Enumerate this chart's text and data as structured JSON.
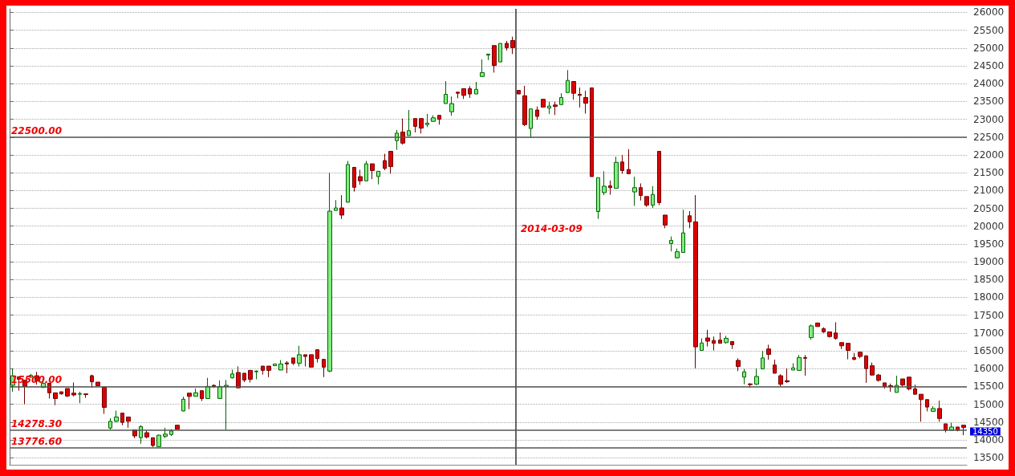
{
  "chart_data": {
    "type": "candlestick",
    "categories": [
      null,
      null,
      null,
      null,
      null,
      null,
      null,
      null,
      null,
      null,
      null,
      null,
      null,
      null,
      null,
      null,
      null,
      null,
      null,
      null,
      null,
      null,
      null,
      null,
      null,
      null,
      null,
      null,
      null,
      null,
      null,
      null,
      null,
      null,
      null,
      null,
      null,
      null,
      null,
      null,
      null,
      null,
      null,
      null,
      null,
      null,
      null,
      null,
      null,
      null,
      null,
      null,
      null,
      null,
      null,
      null,
      null,
      null,
      null,
      null,
      null,
      null,
      null,
      null,
      null,
      null,
      null,
      null,
      null,
      null,
      null,
      null,
      null,
      null,
      null,
      null,
      null,
      null,
      null,
      null,
      null,
      null,
      null,
      null,
      null,
      null,
      null,
      null,
      null,
      null,
      null,
      null,
      null,
      null,
      null,
      null,
      null,
      null,
      null,
      null,
      null,
      null,
      null,
      null,
      null,
      null,
      null,
      null,
      null,
      null,
      null,
      null,
      null,
      null,
      null,
      null,
      null,
      null,
      null,
      null,
      null,
      null,
      null,
      null,
      null,
      null,
      null,
      null,
      null,
      null,
      null,
      null,
      null,
      null,
      null,
      null,
      null,
      null,
      null,
      null,
      null,
      null,
      null,
      null,
      null,
      null,
      null,
      null,
      null,
      null,
      null,
      null,
      null,
      null,
      null,
      null,
      null
    ],
    "ohlc": [
      [
        15530,
        16000,
        15350,
        15800
      ],
      [
        15770,
        15770,
        15380,
        15700
      ],
      [
        15670,
        15680,
        15000,
        15500
      ],
      [
        15760,
        15850,
        15740,
        15810
      ],
      [
        15800,
        15910,
        15550,
        15650
      ],
      [
        15470,
        15650,
        15460,
        15590
      ],
      [
        15590,
        15590,
        15160,
        15320
      ],
      [
        15320,
        15320,
        14970,
        15160
      ],
      [
        15350,
        15350,
        15270,
        15290
      ],
      [
        15440,
        15440,
        15200,
        15230
      ],
      [
        15310,
        15610,
        15220,
        15260
      ],
      [
        15280,
        15350,
        15030,
        15300
      ],
      [
        15290,
        15290,
        15180,
        15270
      ],
      [
        15800,
        15830,
        15460,
        15630
      ],
      [
        15620,
        15620,
        15520,
        15520
      ],
      [
        15480,
        15480,
        14730,
        14910
      ],
      [
        14330,
        14610,
        14290,
        14520
      ],
      [
        14520,
        14820,
        14490,
        14640
      ],
      [
        14750,
        14750,
        14410,
        14490
      ],
      [
        14640,
        14640,
        14340,
        14520
      ],
      [
        14280,
        14280,
        14050,
        14110
      ],
      [
        14060,
        14410,
        13890,
        14370
      ],
      [
        14200,
        14260,
        14040,
        14080
      ],
      [
        14060,
        14060,
        13800,
        13840
      ],
      [
        13810,
        14150,
        13810,
        14130
      ],
      [
        14100,
        14340,
        14050,
        14160
      ],
      [
        14150,
        14300,
        14110,
        14250
      ],
      [
        14410,
        14410,
        14300,
        14300
      ],
      [
        14810,
        15210,
        14800,
        15140
      ],
      [
        15310,
        15310,
        14860,
        15220
      ],
      [
        15220,
        15440,
        15220,
        15320
      ],
      [
        15380,
        15380,
        15090,
        15160
      ],
      [
        15160,
        15740,
        15160,
        15500
      ],
      [
        15530,
        15550,
        15460,
        15500
      ],
      [
        15160,
        15670,
        15160,
        15500
      ],
      [
        15500,
        15680,
        14278,
        15530
      ],
      [
        15740,
        15970,
        15720,
        15850
      ],
      [
        15890,
        16060,
        15460,
        15460
      ],
      [
        15870,
        15870,
        15620,
        15680
      ],
      [
        15950,
        15950,
        15610,
        15700
      ],
      [
        15910,
        15950,
        15700,
        15930
      ],
      [
        16070,
        16070,
        15830,
        15950
      ],
      [
        16070,
        16070,
        15760,
        15950
      ],
      [
        16080,
        16130,
        16080,
        16130
      ],
      [
        15960,
        16240,
        15960,
        16130
      ],
      [
        16160,
        16210,
        15870,
        16130
      ],
      [
        16300,
        16300,
        16100,
        16150
      ],
      [
        16150,
        16640,
        16060,
        16390
      ],
      [
        16390,
        16390,
        16060,
        16340
      ],
      [
        16390,
        16390,
        16040,
        16040
      ],
      [
        16530,
        16530,
        16170,
        16280
      ],
      [
        16260,
        16260,
        15760,
        16040
      ],
      [
        15930,
        21500,
        15900,
        20420
      ],
      [
        20440,
        20730,
        20440,
        20510
      ],
      [
        20510,
        20870,
        20200,
        20310
      ],
      [
        20670,
        21830,
        20670,
        21730
      ],
      [
        21650,
        21650,
        20970,
        21090
      ],
      [
        21390,
        21580,
        21160,
        21270
      ],
      [
        21270,
        21830,
        21270,
        21750
      ],
      [
        21750,
        21750,
        21320,
        21560
      ],
      [
        21390,
        21540,
        21170,
        21540
      ],
      [
        21840,
        22030,
        21570,
        21620
      ],
      [
        22100,
        22100,
        21470,
        21670
      ],
      [
        22400,
        22700,
        22140,
        22610
      ],
      [
        22640,
        23020,
        22290,
        22330
      ],
      [
        22540,
        23260,
        22540,
        22680
      ],
      [
        23020,
        23020,
        22630,
        22800
      ],
      [
        23020,
        23020,
        22600,
        22750
      ],
      [
        22850,
        23150,
        22780,
        22890
      ],
      [
        22940,
        23110,
        22940,
        23040
      ],
      [
        23110,
        23110,
        22850,
        23000
      ],
      [
        23440,
        24070,
        23440,
        23700
      ],
      [
        23210,
        23640,
        23100,
        23440
      ],
      [
        23760,
        23760,
        23590,
        23730
      ],
      [
        23860,
        23860,
        23570,
        23670
      ],
      [
        23860,
        23930,
        23600,
        23710
      ],
      [
        23710,
        24050,
        23710,
        23840
      ],
      [
        24200,
        24680,
        24200,
        24310
      ],
      [
        24800,
        24830,
        24660,
        24830
      ],
      [
        25070,
        25070,
        24310,
        24510
      ],
      [
        24610,
        25130,
        24610,
        25130
      ],
      [
        25130,
        25200,
        24930,
        25010
      ],
      [
        25210,
        25320,
        24830,
        25010
      ],
      [
        23810,
        23810,
        23710,
        23710
      ],
      [
        23660,
        23940,
        22810,
        22850
      ],
      [
        22740,
        23290,
        22480,
        23290
      ],
      [
        23260,
        23360,
        22990,
        23080
      ],
      [
        23560,
        23560,
        23340,
        23340
      ],
      [
        23310,
        23490,
        23150,
        23370
      ],
      [
        23400,
        23490,
        23120,
        23360
      ],
      [
        23410,
        23730,
        23410,
        23610
      ],
      [
        23750,
        24380,
        23750,
        24090
      ],
      [
        24060,
        24060,
        23550,
        23730
      ],
      [
        23700,
        23890,
        23330,
        23670
      ],
      [
        23610,
        23800,
        23160,
        23450
      ],
      [
        23880,
        23880,
        21390,
        21390
      ],
      [
        20410,
        21360,
        20200,
        21360
      ],
      [
        20940,
        21540,
        20870,
        21120
      ],
      [
        21130,
        21280,
        20880,
        21080
      ],
      [
        21060,
        21950,
        21060,
        21790
      ],
      [
        21800,
        21990,
        21470,
        21560
      ],
      [
        21590,
        22160,
        21470,
        21470
      ],
      [
        20960,
        21390,
        20570,
        21080
      ],
      [
        21080,
        21200,
        20720,
        20860
      ],
      [
        20830,
        20830,
        20540,
        20590
      ],
      [
        20590,
        21120,
        20510,
        20890
      ],
      [
        22100,
        22100,
        20590,
        20660
      ],
      [
        20310,
        20310,
        19940,
        20030
      ],
      [
        19510,
        19710,
        19290,
        19600
      ],
      [
        19110,
        19370,
        19100,
        19280
      ],
      [
        19260,
        20460,
        19260,
        19810
      ],
      [
        20290,
        20420,
        19940,
        20120
      ],
      [
        20120,
        20870,
        16010,
        16610
      ],
      [
        16510,
        16850,
        16510,
        16720
      ],
      [
        16860,
        17090,
        16620,
        16770
      ],
      [
        16790,
        16900,
        16510,
        16710
      ],
      [
        16800,
        17010,
        16710,
        16710
      ],
      [
        16730,
        16920,
        16700,
        16850
      ],
      [
        16760,
        16760,
        16550,
        16670
      ],
      [
        16230,
        16290,
        15930,
        16060
      ],
      [
        15760,
        15990,
        15560,
        15910
      ],
      [
        15570,
        15590,
        15460,
        15550
      ],
      [
        15560,
        16010,
        15540,
        15780
      ],
      [
        15990,
        16500,
        15990,
        16300
      ],
      [
        16550,
        16670,
        16250,
        16400
      ],
      [
        16100,
        16250,
        15870,
        15870
      ],
      [
        15800,
        15840,
        15500,
        15560
      ],
      [
        15660,
        16010,
        15600,
        15630
      ],
      [
        15960,
        16150,
        15960,
        16020
      ],
      [
        15950,
        16380,
        15950,
        16310
      ],
      [
        16310,
        16380,
        15800,
        16290
      ],
      [
        16870,
        17240,
        16810,
        17200
      ],
      [
        17280,
        17280,
        17180,
        17180
      ],
      [
        17120,
        17160,
        17000,
        17030
      ],
      [
        17030,
        17030,
        16870,
        16900
      ],
      [
        17000,
        17300,
        16810,
        16850
      ],
      [
        16730,
        16730,
        16550,
        16640
      ],
      [
        16710,
        16710,
        16260,
        16510
      ],
      [
        16310,
        16440,
        16230,
        16260
      ],
      [
        16460,
        16460,
        16290,
        16340
      ],
      [
        16360,
        16360,
        15600,
        16000
      ],
      [
        16080,
        16170,
        15800,
        15820
      ],
      [
        15820,
        15850,
        15630,
        15670
      ],
      [
        15600,
        15600,
        15440,
        15500
      ],
      [
        15520,
        15580,
        15350,
        15490
      ],
      [
        15330,
        15800,
        15330,
        15530
      ],
      [
        15710,
        15710,
        15500,
        15540
      ],
      [
        15760,
        15760,
        15390,
        15430
      ],
      [
        15430,
        15550,
        15280,
        15280
      ],
      [
        15280,
        15280,
        14510,
        15130
      ],
      [
        15130,
        15130,
        14800,
        14920
      ],
      [
        14800,
        14940,
        14790,
        14880
      ],
      [
        14880,
        15100,
        14510,
        14600
      ],
      [
        14450,
        14450,
        14210,
        14270
      ],
      [
        14270,
        14480,
        14270,
        14360
      ],
      [
        14360,
        14360,
        14240,
        14270
      ],
      [
        14410,
        14410,
        14130,
        14350
      ]
    ],
    "ylim": [
      13300,
      26100
    ],
    "yticks": [
      13500,
      14000,
      14500,
      15000,
      15500,
      16000,
      16500,
      17000,
      17500,
      18000,
      18500,
      19000,
      19500,
      20000,
      20500,
      21000,
      21500,
      22000,
      22500,
      23000,
      23500,
      24000,
      24500,
      25000,
      25500,
      26000
    ],
    "ref_lines": [
      {
        "axis": "y",
        "value": 22500,
        "label": "22500.00"
      },
      {
        "axis": "y",
        "value": 15500,
        "label": "15500.00"
      },
      {
        "axis": "y",
        "value": 14278.3,
        "label": "14278.30"
      },
      {
        "axis": "y",
        "value": 13776.6,
        "label": "13776.60"
      }
    ],
    "annotations": [
      "2014-03-09",
      "14350"
    ],
    "grid": "y",
    "tick_labels": "y"
  }
}
